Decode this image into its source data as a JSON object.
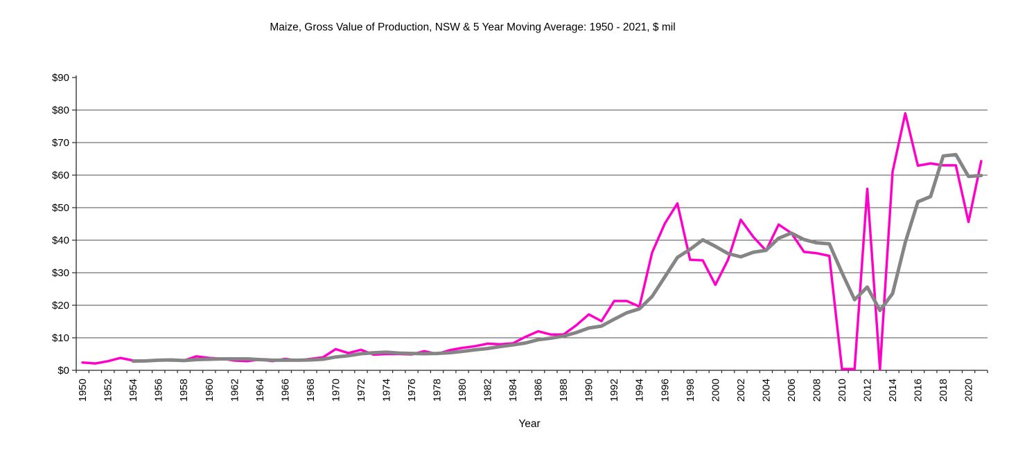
{
  "page": {
    "background": "#ffffff"
  },
  "chart_data": {
    "type": "line",
    "title": "Maize, Gross Value of Production, NSW & 5 Year Moving Average: 1950 - 2021, $ mil",
    "xlabel": "Year",
    "ylabel": "",
    "ylim": [
      0,
      90
    ],
    "ytick_interval": 10,
    "ytick_labels": [
      "$0",
      "$10",
      "$20",
      "$30",
      "$40",
      "$50",
      "$60",
      "$70",
      "$80",
      "$90"
    ],
    "xtick_label_step": 2,
    "grid": "horizontal",
    "legend_position": "none",
    "x": [
      1950,
      1951,
      1952,
      1953,
      1954,
      1955,
      1956,
      1957,
      1958,
      1959,
      1960,
      1961,
      1962,
      1963,
      1964,
      1965,
      1966,
      1967,
      1968,
      1969,
      1970,
      1971,
      1972,
      1973,
      1974,
      1975,
      1976,
      1977,
      1978,
      1979,
      1980,
      1981,
      1982,
      1983,
      1984,
      1985,
      1986,
      1987,
      1988,
      1989,
      1990,
      1991,
      1992,
      1993,
      1994,
      1995,
      1996,
      1997,
      1998,
      1999,
      2000,
      2001,
      2002,
      2003,
      2004,
      2005,
      2006,
      2007,
      2008,
      2009,
      2010,
      2011,
      2012,
      2013,
      2014,
      2015,
      2016,
      2017,
      2018,
      2019,
      2020,
      2021
    ],
    "series": [
      {
        "name": "Gross Value of Production, NSW",
        "color": "#FF00C8",
        "stroke_width": 3.5,
        "values": [
          2.4,
          2.1,
          2.8,
          3.8,
          3.0,
          3.0,
          3.1,
          3.0,
          3.0,
          4.3,
          3.8,
          3.6,
          3.0,
          2.8,
          3.3,
          2.8,
          3.5,
          3.0,
          3.5,
          4.0,
          6.5,
          5.3,
          6.3,
          4.8,
          5.0,
          5.0,
          4.9,
          5.9,
          5.0,
          6.2,
          6.9,
          7.4,
          8.2,
          8.0,
          8.3,
          10.3,
          12.0,
          11.0,
          11.0,
          13.8,
          17.2,
          15.1,
          21.3,
          21.3,
          19.6,
          36.2,
          45.1,
          51.3,
          34.0,
          33.8,
          26.3,
          34.0,
          46.3,
          41.0,
          36.8,
          44.8,
          42.2,
          36.4,
          36.0,
          35.2,
          0.4,
          0.4,
          55.8,
          0.3,
          61.0,
          79.0,
          62.9,
          63.6,
          63.0,
          63.0,
          45.6,
          64.3
        ]
      },
      {
        "name": "5 Year Moving Average",
        "color": "#858585",
        "stroke_width": 5,
        "values": [
          null,
          null,
          null,
          null,
          2.8,
          2.9,
          3.1,
          3.2,
          3.0,
          3.3,
          3.4,
          3.5,
          3.5,
          3.5,
          3.3,
          3.1,
          3.1,
          3.1,
          3.2,
          3.4,
          4.1,
          4.5,
          5.1,
          5.4,
          5.6,
          5.3,
          5.2,
          5.1,
          5.2,
          5.4,
          5.8,
          6.3,
          6.7,
          7.3,
          7.8,
          8.4,
          9.4,
          9.9,
          10.5,
          11.6,
          13.0,
          13.6,
          15.7,
          17.7,
          18.9,
          22.7,
          28.7,
          34.7,
          37.2,
          40.1,
          38.1,
          35.9,
          34.9,
          36.3,
          36.9,
          40.6,
          42.2,
          40.2,
          39.2,
          38.9,
          30.0,
          21.7,
          25.6,
          18.4,
          23.6,
          39.3,
          51.8,
          53.4,
          65.9,
          66.3,
          59.6,
          59.9
        ]
      }
    ],
    "axis_color": "#262626",
    "gridline_color": "#4d4d4d",
    "tick_label_color": "#000000"
  }
}
